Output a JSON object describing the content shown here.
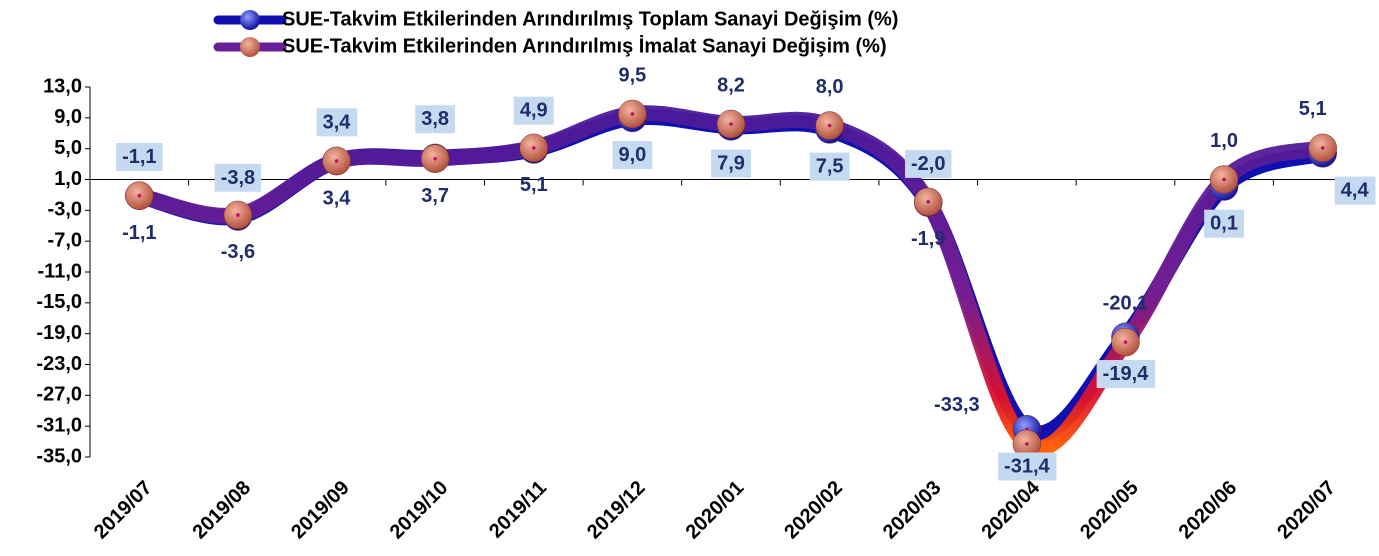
{
  "chart_data": {
    "type": "line",
    "categories": [
      "2019/07",
      "2019/08",
      "2019/09",
      "2019/10",
      "2019/11",
      "2019/12",
      "2020/01",
      "2020/02",
      "2020/03",
      "2020/04",
      "2020/05",
      "2020/06",
      "2020/07"
    ],
    "series": [
      {
        "name": "SUE-Takvim Etkilerinden Arındırılmış Toplam Sanayi Değişim (%)",
        "color": "#1010b0",
        "marker_color": "#2b3fd6",
        "values": [
          -1.1,
          -3.8,
          3.4,
          3.8,
          4.9,
          9.0,
          7.9,
          7.5,
          -2.0,
          -31.4,
          -19.4,
          0.1,
          4.4
        ],
        "value_labels": [
          "-1,1",
          "-3,8",
          "3,4",
          "3,8",
          "4,9",
          "9,0",
          "7,9",
          "7,5",
          "-2,0",
          "-31,4",
          "-19,4",
          "0,1",
          "4,4"
        ]
      },
      {
        "name": "SUE-Takvim Etkilerinden Arındırılmış İmalat Sanayi Değişim (%)",
        "color": "#6a1f9a",
        "marker_color": "#d0705a",
        "values": [
          -1.1,
          -3.6,
          3.4,
          3.7,
          5.1,
          9.5,
          8.2,
          8.0,
          -1.9,
          -33.3,
          -20.1,
          1.0,
          5.1
        ],
        "value_labels": [
          "-1,1",
          "-3,6",
          "3,4",
          "3,7",
          "5,1",
          "9,5",
          "8,2",
          "8,0",
          "-1,9",
          "-33,3",
          "-20,1",
          "1,0",
          "5,1"
        ]
      }
    ],
    "ylim": [
      -35,
      13
    ],
    "yticks": [
      {
        "value": 13,
        "label": "13,0"
      },
      {
        "value": 9,
        "label": "9,0"
      },
      {
        "value": 5,
        "label": "5,0"
      },
      {
        "value": 1,
        "label": "1,0"
      },
      {
        "value": -3,
        "label": "-3,0"
      },
      {
        "value": -7,
        "label": "-7,0"
      },
      {
        "value": -11,
        "label": "-11,0"
      },
      {
        "value": -15,
        "label": "-15,0"
      },
      {
        "value": -19,
        "label": "-19,0"
      },
      {
        "value": -23,
        "label": "-23,0"
      },
      {
        "value": -27,
        "label": "-27,0"
      },
      {
        "value": -31,
        "label": "-31,0"
      },
      {
        "value": -35,
        "label": "-35,0"
      }
    ],
    "x_axis_crosses": 1,
    "grid": false,
    "legend": "top"
  }
}
